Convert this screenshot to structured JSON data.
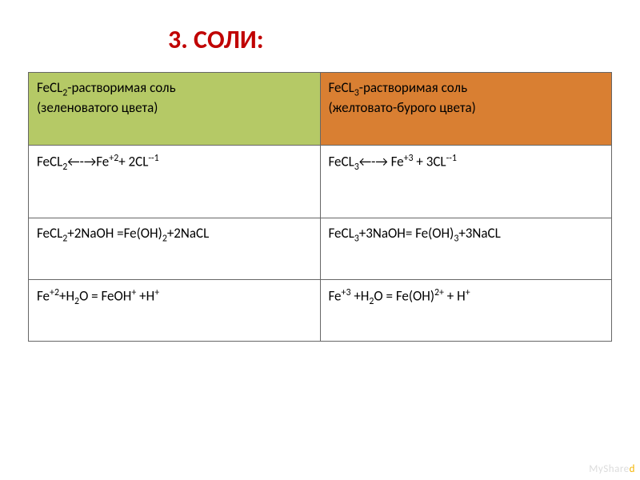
{
  "title": "3.  СОЛИ:",
  "table": {
    "border_color": "#666666",
    "header_colors": {
      "left": "#b5c966",
      "right": "#d97f32"
    },
    "cell_fontsize": 17,
    "title_color": "#c00000",
    "title_fontsize": 32,
    "rows": [
      {
        "left_html": "FeCL<sub>2</sub>-растворимая соль<br>(зеленоватого цвета)",
        "right_html": "FeCL<sub>3</sub>-растворимая соль<br>(желтовато-бурого цвета)"
      },
      {
        "left_html": "FeCL<sub>2</sub>&larr;-&rarr;Fe<sup>+2</sup>+ 2CL<sup>--1</sup>",
        "right_html": "FeCL<sub>3</sub>&larr;-&rarr; Fe<sup>+3</sup> + 3CL<sup>--1</sup>"
      },
      {
        "left_html": "FeCL<sub>2</sub>+2NaOH =Fe(OH)<sub>2</sub>+2NaCL",
        "right_html": "FeCL<sub>3</sub>+3NaOH= Fe(OH)<sub>3</sub>+3NaCL"
      },
      {
        "left_html": "Fe<sup>+2</sup>+H<sub>2</sub>O = FeOH<sup>+</sup> +H<sup>+</sup>",
        "right_html": "Fe<sup>+3</sup> +H<sub>2</sub>O = Fe(OH)<sup>2+</sup> + H<sup>+</sup>"
      }
    ]
  },
  "watermark": {
    "pre": "MyShare",
    "accent": "d"
  }
}
